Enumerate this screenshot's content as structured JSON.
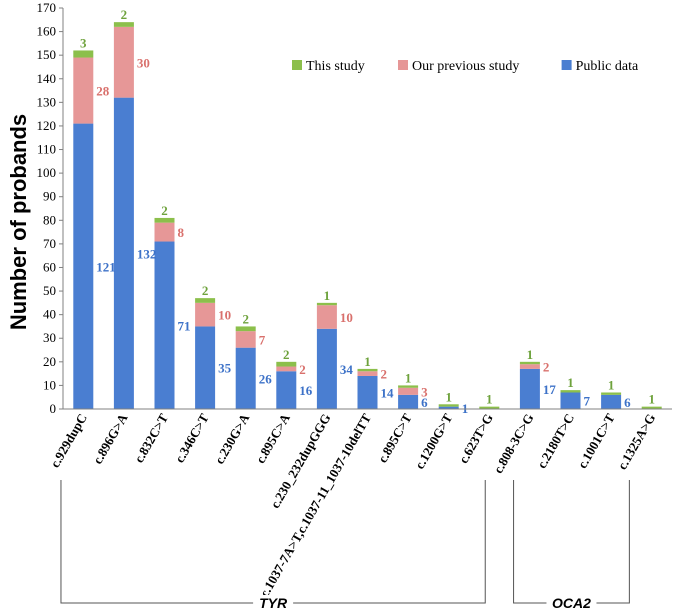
{
  "chart_data": {
    "type": "bar",
    "stacked": true,
    "categories": [
      "c.929dupC",
      "c.896G>A",
      "c.832C>T",
      "c.346C>T",
      "c.230G>A",
      "c.895C>A",
      "c.230_232dupGGG",
      "c.1037-7A>T,c.1037-11_1037-10delTT",
      "c.895C>T",
      "c.1200G>T",
      "c.623T>G",
      "c.808-3C>G",
      "c.2180T>C",
      "c.1001C>T",
      "c.1325A>G"
    ],
    "series": [
      {
        "name": "Public data",
        "color": "#4a7ed1",
        "label_color": "#3d72c8",
        "values": [
          121,
          132,
          71,
          35,
          26,
          16,
          34,
          14,
          6,
          1,
          0,
          17,
          7,
          6,
          0
        ],
        "labels": [
          "121",
          "132",
          "71",
          "35",
          "26",
          "16",
          "34",
          "14",
          "6",
          "1",
          null,
          "17",
          "7",
          "6",
          null
        ]
      },
      {
        "name": "Our previous study",
        "color": "#e69797",
        "label_color": "#d9706c",
        "values": [
          28,
          30,
          8,
          10,
          7,
          2,
          10,
          2,
          3,
          0,
          0,
          2,
          0,
          0,
          0
        ],
        "labels": [
          "28",
          "30",
          "8",
          "10",
          "7",
          "2",
          "10",
          "2",
          "3",
          null,
          null,
          "2",
          null,
          null,
          null
        ]
      },
      {
        "name": "This study",
        "color": "#8cbf4b",
        "label_color": "#6ea23c",
        "values": [
          3,
          2,
          2,
          2,
          2,
          2,
          1,
          1,
          1,
          1,
          1,
          1,
          1,
          1,
          1
        ],
        "labels": [
          "3",
          "2",
          "2",
          "2",
          "2",
          "2",
          "1",
          "1",
          "1",
          "1",
          "1",
          "1",
          "1",
          "1",
          "1"
        ]
      }
    ],
    "legend_order": [
      "This study",
      "Our previous study",
      "Public data"
    ],
    "legend_position": "top-right",
    "ylabel": "Number of  probands",
    "xlabel": "",
    "ylim": [
      0,
      170
    ],
    "yticks": [
      0,
      10,
      20,
      30,
      40,
      50,
      60,
      70,
      80,
      90,
      100,
      110,
      120,
      130,
      140,
      150,
      160,
      170
    ],
    "groups": [
      {
        "name": "TYR",
        "from": 0,
        "to": 10
      },
      {
        "name": "OCA2",
        "from": 11,
        "to": 14
      }
    ]
  }
}
